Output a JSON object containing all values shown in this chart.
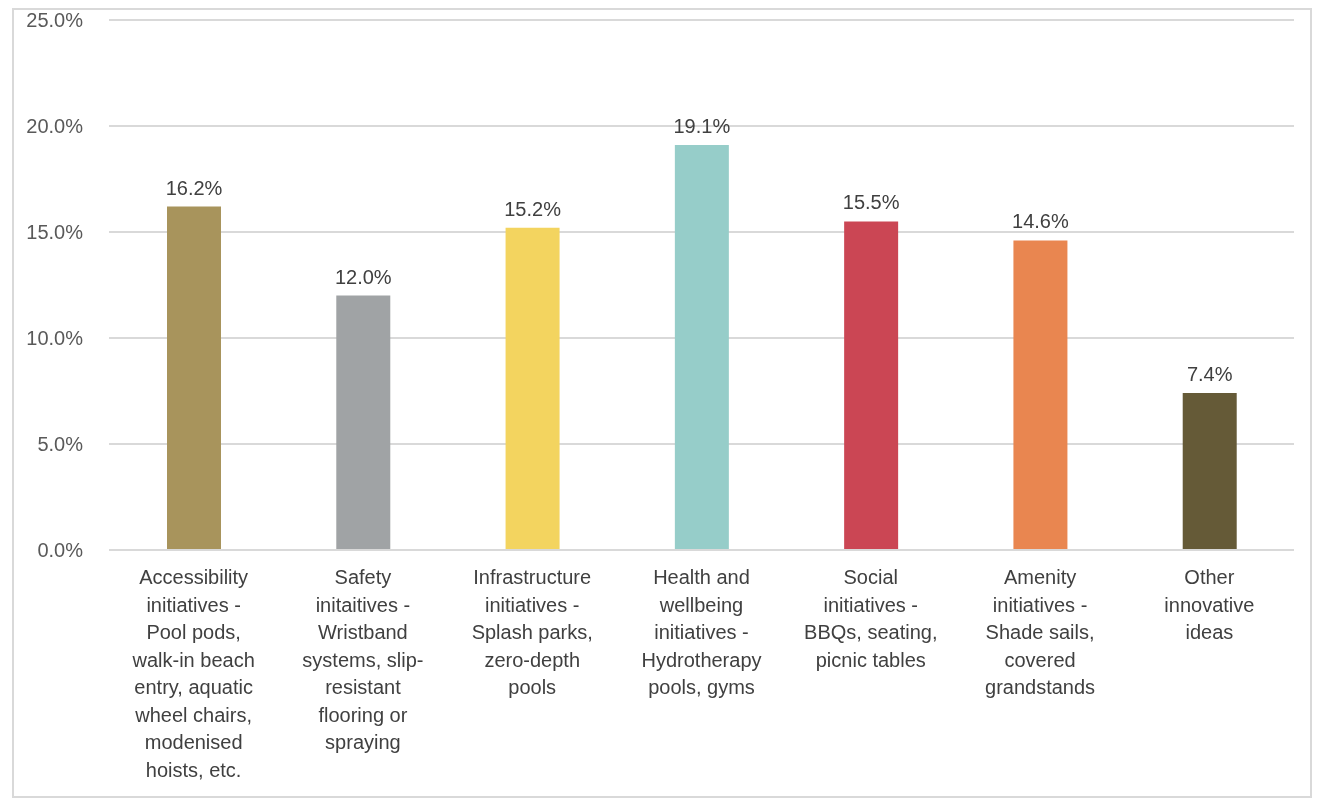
{
  "chart_data": {
    "type": "bar",
    "categories": [
      "Accessibility initiatives - Pool pods, walk-in beach entry, aquatic wheel chairs, modenised hoists, etc.",
      "Safety initaitives - Wristband systems, slip-resistant flooring or spraying",
      "Infrastructure initiatives - Splash parks, zero-depth pools",
      "Health and wellbeing initiatives - Hydrotherapy pools, gyms",
      "Social initiatives - BBQs, seating, picnic tables",
      "Amenity initiatives - Shade sails, covered grandstands",
      "Other innovative ideas"
    ],
    "values": [
      16.2,
      12.0,
      15.2,
      19.1,
      15.5,
      14.6,
      7.4
    ],
    "colors": [
      "#a8945c",
      "#a0a3a5",
      "#f3d45f",
      "#96cdc9",
      "#cb4654",
      "#e98650",
      "#655a37"
    ],
    "value_labels": [
      "16.2%",
      "12.0%",
      "15.2%",
      "19.1%",
      "15.5%",
      "14.6%",
      "7.4%"
    ],
    "ylim": [
      0,
      25
    ],
    "yticks": [
      {
        "value": 0,
        "label": "0.0%"
      },
      {
        "value": 5,
        "label": "5.0%"
      },
      {
        "value": 10,
        "label": "10.0%"
      },
      {
        "value": 15,
        "label": "15.0%"
      },
      {
        "value": 20,
        "label": "20.0%"
      },
      {
        "value": 25,
        "label": "25.0%"
      }
    ],
    "grid": "y"
  }
}
